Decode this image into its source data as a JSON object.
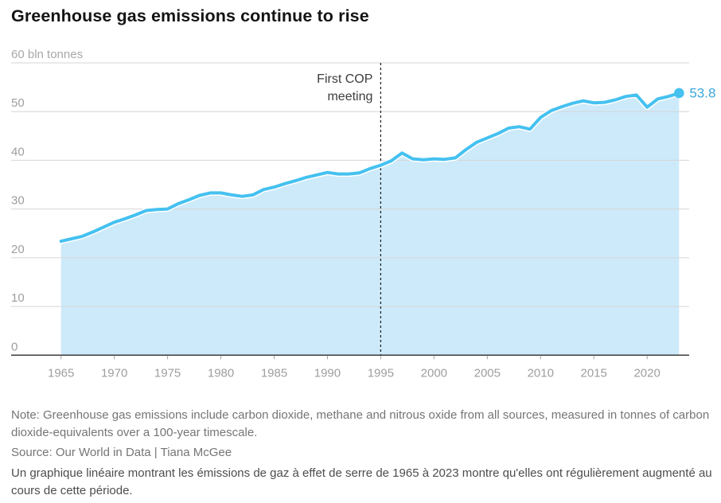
{
  "page": {
    "title": "Greenhouse gas emissions continue to rise"
  },
  "chart_data": {
    "type": "area",
    "title": "Greenhouse gas emissions continue to rise",
    "unit_label": "60 bln tonnes",
    "ylabel": "bln tonnes",
    "ylim": [
      0,
      60
    ],
    "y_ticks": [
      0,
      10,
      20,
      30,
      40,
      50
    ],
    "x_ticks": [
      1965,
      1970,
      1975,
      1980,
      1985,
      1990,
      1995,
      2000,
      2005,
      2010,
      2015,
      2020
    ],
    "x_range": [
      1965,
      2023
    ],
    "grid": "horizontal",
    "x": [
      1965,
      1966,
      1967,
      1968,
      1969,
      1970,
      1971,
      1972,
      1973,
      1974,
      1975,
      1976,
      1977,
      1978,
      1979,
      1980,
      1981,
      1982,
      1983,
      1984,
      1985,
      1986,
      1987,
      1988,
      1989,
      1990,
      1991,
      1992,
      1993,
      1994,
      1995,
      1996,
      1997,
      1998,
      1999,
      2000,
      2001,
      2002,
      2003,
      2004,
      2005,
      2006,
      2007,
      2008,
      2009,
      2010,
      2011,
      2012,
      2013,
      2014,
      2015,
      2016,
      2017,
      2018,
      2019,
      2020,
      2021,
      2022,
      2023
    ],
    "values": [
      23.4,
      23.9,
      24.4,
      25.3,
      26.3,
      27.3,
      28.0,
      28.8,
      29.7,
      29.9,
      30.0,
      31.1,
      31.9,
      32.8,
      33.3,
      33.3,
      32.9,
      32.6,
      32.9,
      34.0,
      34.5,
      35.2,
      35.8,
      36.5,
      37.0,
      37.5,
      37.2,
      37.2,
      37.4,
      38.3,
      39.0,
      39.9,
      41.5,
      40.3,
      40.1,
      40.3,
      40.2,
      40.5,
      42.2,
      43.7,
      44.6,
      45.5,
      46.6,
      46.9,
      46.4,
      48.8,
      50.2,
      51.0,
      51.7,
      52.2,
      51.8,
      51.9,
      52.4,
      53.1,
      53.4,
      50.9,
      52.6,
      53.1,
      53.8
    ],
    "annotation": {
      "lines": [
        "First COP",
        "meeting"
      ],
      "year": 1995
    },
    "end_label": "53.8",
    "colors": {
      "line": "#45c1f0",
      "area": "#cdeafa",
      "end_label": "#3ba7dc",
      "grid": "#d6d6d6",
      "axis": "#3d3d3d",
      "tick_label": "#9e9e9e",
      "unit_label": "#a8a8a8",
      "annotation_text": "#3d3d3d",
      "annotation_line": "#1a1a1a"
    }
  },
  "footer": {
    "note": "Note: Greenhouse gas emissions include carbon dioxide, methane and nitrous oxide from all sources, measured in tonnes of carbon dioxide-equivalents over a 100-year timescale.",
    "source": "Source: Our World in Data | Tiana McGee",
    "caption": "Un graphique linéaire montrant les émissions de gaz à effet de serre de 1965 à 2023 montre qu'elles ont régulièrement augmenté au cours de cette période."
  }
}
